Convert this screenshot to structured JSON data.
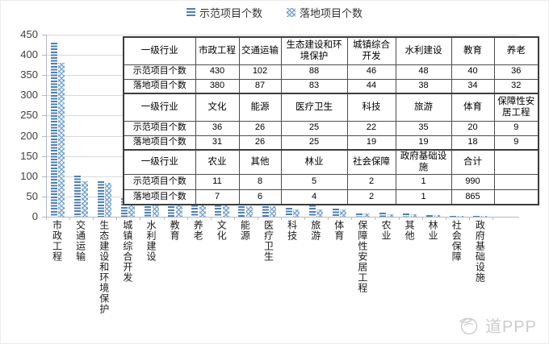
{
  "legend": {
    "items": [
      {
        "label": "示范项目个数"
      },
      {
        "label": "落地项目个数"
      }
    ]
  },
  "chart_data": {
    "type": "bar",
    "title": "",
    "categories": [
      "市政工程",
      "交通运输",
      "生态建设和环境保护",
      "城镇综合开发",
      "水利建设",
      "教育",
      "养老",
      "文化",
      "能源",
      "医疗卫生",
      "科技",
      "旅游",
      "体育",
      "保障性安居工程",
      "农业",
      "其他",
      "林业",
      "社会保障",
      "政府基础设施"
    ],
    "series": [
      {
        "name": "示范项目个数",
        "values": [
          430,
          102,
          88,
          46,
          48,
          40,
          36,
          36,
          26,
          25,
          22,
          35,
          20,
          9,
          11,
          8,
          5,
          2,
          1
        ]
      },
      {
        "name": "落地项目个数",
        "values": [
          380,
          87,
          83,
          44,
          38,
          34,
          32,
          31,
          26,
          25,
          19,
          19,
          18,
          9,
          7,
          6,
          4,
          2,
          1
        ]
      }
    ],
    "totals": {
      "示范项目个数": 990,
      "落地项目个数": 865
    },
    "ylim": [
      0,
      450
    ],
    "yticks": [
      0,
      50,
      100,
      150,
      200,
      250,
      300,
      350,
      400,
      450
    ],
    "grid": true,
    "legend_position": "top-center",
    "xlabel": "",
    "ylabel": ""
  },
  "table": {
    "rows": [
      {
        "type": "header",
        "cells": [
          "一级行业",
          "市政工程",
          "交通运输",
          "生态建设和环境保护",
          "城镇综合开发",
          "水利建设",
          "教育",
          "养老"
        ]
      },
      {
        "type": "data",
        "cells": [
          "示范项目个数",
          "430",
          "102",
          "88",
          "46",
          "48",
          "40",
          "36"
        ]
      },
      {
        "type": "data",
        "cells": [
          "落地项目个数",
          "380",
          "87",
          "83",
          "44",
          "38",
          "34",
          "32"
        ]
      },
      {
        "type": "header",
        "cells": [
          "一级行业",
          "文化",
          "能源",
          "医疗卫生",
          "科技",
          "旅游",
          "体育",
          "保障性安居工程"
        ]
      },
      {
        "type": "data",
        "cells": [
          "示范项目个数",
          "36",
          "26",
          "25",
          "22",
          "35",
          "20",
          "9"
        ]
      },
      {
        "type": "data",
        "cells": [
          "落地项目个数",
          "31",
          "26",
          "25",
          "19",
          "19",
          "18",
          "9"
        ]
      },
      {
        "type": "header",
        "cells": [
          "一级行业",
          "农业",
          "其他",
          "林业",
          "社会保障",
          "政府基础设施",
          "合计",
          ""
        ]
      },
      {
        "type": "data",
        "cells": [
          "示范项目个数",
          "11",
          "8",
          "5",
          "2",
          "1",
          "990",
          ""
        ]
      },
      {
        "type": "data",
        "cells": [
          "落地项目个数",
          "7",
          "6",
          "4",
          "2",
          "1",
          "865",
          ""
        ]
      }
    ]
  },
  "watermark": {
    "text": "道PPP"
  },
  "colors": {
    "series1": "#4e7fb5",
    "series2_base": "#e9f1f8",
    "series2_line": "#6f9bc9",
    "grid": "#d9d9d9",
    "axis": "#b3bac1",
    "table_border": "#3c3c3c",
    "watermark": "#cccccc"
  }
}
